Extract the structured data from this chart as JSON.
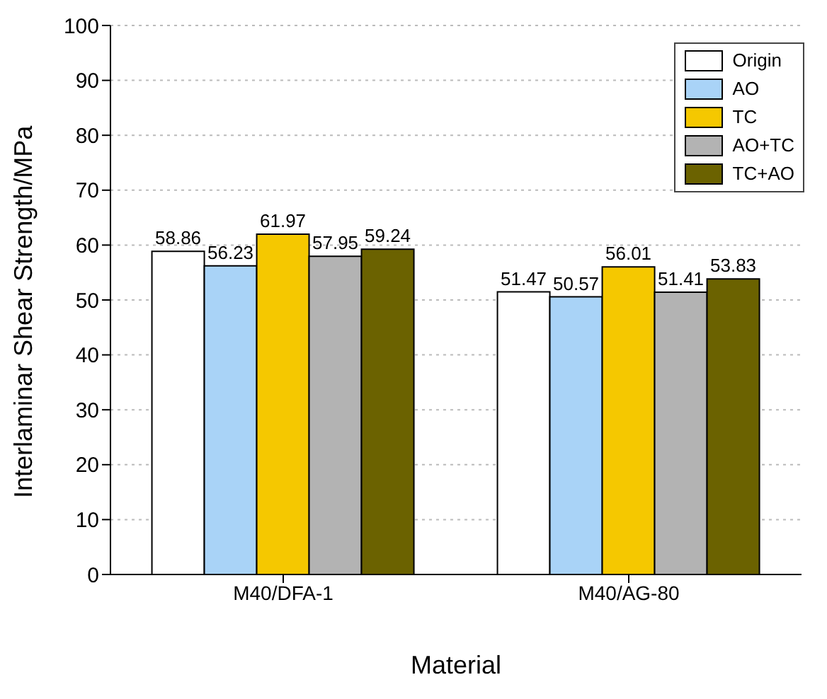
{
  "chart_data": {
    "type": "bar",
    "xlabel": "Material",
    "ylabel": "Interlaminar Shear Strength/MPa",
    "categories": [
      "M40/DFA-1",
      "M40/AG-80"
    ],
    "series": [
      {
        "name": "Origin",
        "color": "#ffffff",
        "values": [
          58.86,
          51.47
        ]
      },
      {
        "name": "AO",
        "color": "#a9d3f7",
        "values": [
          56.23,
          50.57
        ]
      },
      {
        "name": "TC",
        "color": "#f5c800",
        "values": [
          61.97,
          56.01
        ]
      },
      {
        "name": "AO+TC",
        "color": "#b3b3b3",
        "values": [
          57.95,
          51.41
        ]
      },
      {
        "name": "TC+AO",
        "color": "#6b6200",
        "values": [
          59.24,
          53.83
        ]
      }
    ],
    "ylim": [
      0,
      100
    ],
    "yticks": [
      0,
      10,
      20,
      30,
      40,
      50,
      60,
      70,
      80,
      90,
      100
    ],
    "grid": "y",
    "legend": "top right",
    "data_labels": true
  }
}
